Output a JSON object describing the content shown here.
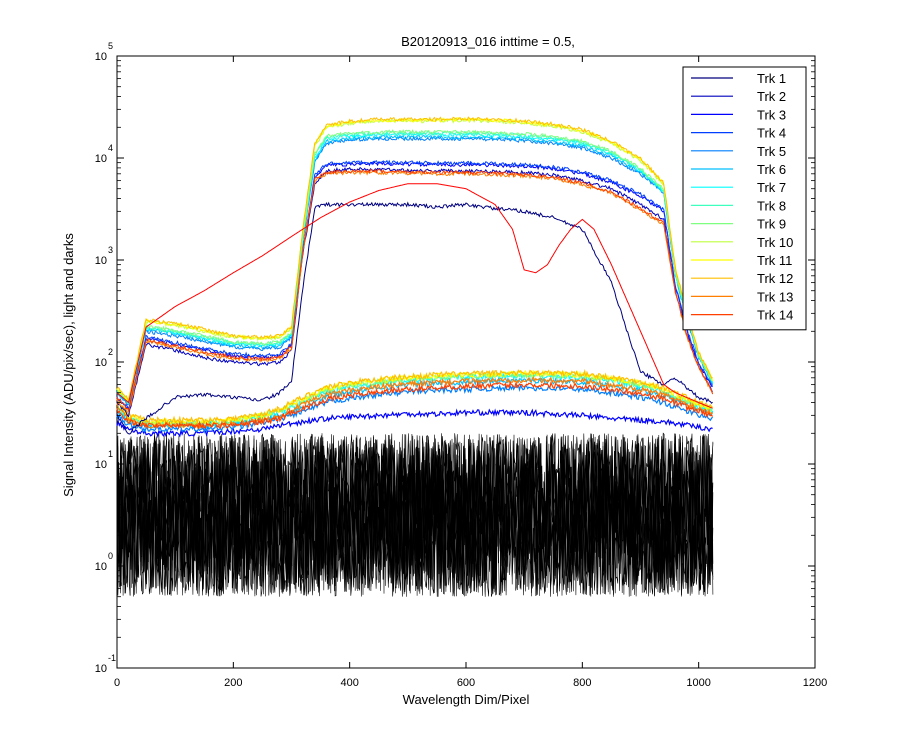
{
  "chart_data": {
    "type": "line",
    "title": "B20120913_016 inttime = 0.5,",
    "xlabel": "Wavelength Dim/Pixel",
    "ylabel": "Signal Intensity (ADU/pix/sec), light and darks",
    "xlim": [
      0,
      1200
    ],
    "ylim": [
      0.1,
      100000
    ],
    "y_scale": "log",
    "grid": false,
    "legend_position": "top-right",
    "x_ticks": [
      0,
      200,
      400,
      600,
      800,
      1000,
      1200
    ],
    "y_ticks": [
      {
        "base": "10",
        "exp": "-1",
        "value": 0.1
      },
      {
        "base": "10",
        "exp": "0",
        "value": 1
      },
      {
        "base": "10",
        "exp": "1",
        "value": 10
      },
      {
        "base": "10",
        "exp": "2",
        "value": 100
      },
      {
        "base": "10",
        "exp": "3",
        "value": 1000
      },
      {
        "base": "10",
        "exp": "4",
        "value": 10000
      },
      {
        "base": "10",
        "exp": "5",
        "value": 100000
      }
    ],
    "x_points": [
      0,
      20,
      50,
      100,
      150,
      200,
      250,
      280,
      300,
      320,
      340,
      360,
      400,
      450,
      500,
      550,
      600,
      650,
      700,
      750,
      800,
      850,
      900,
      940,
      960,
      980,
      1000,
      1025
    ],
    "series": [
      {
        "name": "Trk 1",
        "color": "#00007f",
        "values": [
          30,
          20,
          28,
          45,
          48,
          45,
          42,
          50,
          65,
          550,
          3300,
          3500,
          3500,
          3500,
          3500,
          3300,
          3500,
          3200,
          3000,
          2600,
          2000,
          600,
          80,
          60,
          70,
          55,
          45,
          40
        ]
      },
      {
        "name": "Trk 2",
        "color": "#0000bf",
        "values": [
          40,
          30,
          150,
          130,
          110,
          100,
          95,
          100,
          130,
          1200,
          5500,
          7500,
          7800,
          7700,
          7600,
          7500,
          7500,
          7400,
          7200,
          6800,
          6000,
          5000,
          3500,
          2500,
          500,
          180,
          90,
          50
        ]
      },
      {
        "name": "Trk 3",
        "color": "#0000ff",
        "values": [
          45,
          35,
          170,
          150,
          130,
          115,
          110,
          115,
          145,
          1300,
          6500,
          8500,
          8700,
          8800,
          8700,
          8600,
          8600,
          8500,
          8300,
          7900,
          7000,
          5800,
          4200,
          3000,
          550,
          200,
          95,
          55
        ]
      },
      {
        "name": "Trk 4",
        "color": "#003fff",
        "values": [
          45,
          35,
          175,
          155,
          135,
          120,
          115,
          120,
          150,
          1350,
          6700,
          8800,
          9000,
          9100,
          9000,
          8900,
          8900,
          8800,
          8600,
          8200,
          7300,
          6000,
          4400,
          3100,
          560,
          210,
          98,
          56
        ]
      },
      {
        "name": "Trk 5",
        "color": "#007fff",
        "values": [
          50,
          38,
          200,
          180,
          160,
          140,
          135,
          140,
          175,
          1600,
          9000,
          14000,
          15000,
          15500,
          15500,
          15500,
          15500,
          15200,
          14800,
          14000,
          12500,
          10000,
          7000,
          4500,
          700,
          260,
          110,
          60
        ]
      },
      {
        "name": "Trk 6",
        "color": "#00bfff",
        "values": [
          50,
          38,
          210,
          190,
          165,
          145,
          140,
          145,
          180,
          1650,
          9500,
          14500,
          15500,
          16000,
          16000,
          16000,
          16000,
          15700,
          15300,
          14500,
          13000,
          10500,
          7300,
          4600,
          710,
          265,
          112,
          60
        ]
      },
      {
        "name": "Trk 7",
        "color": "#00ffff",
        "values": [
          52,
          40,
          215,
          195,
          170,
          150,
          145,
          150,
          185,
          1700,
          10000,
          15500,
          16500,
          17000,
          17000,
          17000,
          17000,
          16700,
          16200,
          15300,
          13800,
          11000,
          7500,
          4700,
          720,
          270,
          114,
          62
        ]
      },
      {
        "name": "Trk 8",
        "color": "#3fffbf",
        "values": [
          52,
          40,
          220,
          200,
          175,
          155,
          150,
          155,
          190,
          1750,
          10500,
          16000,
          17000,
          17500,
          17500,
          17500,
          17500,
          17200,
          16700,
          15800,
          14200,
          11300,
          7700,
          4800,
          730,
          275,
          115,
          62
        ]
      },
      {
        "name": "Trk 9",
        "color": "#7fff7f",
        "values": [
          53,
          41,
          225,
          205,
          180,
          158,
          152,
          158,
          195,
          1800,
          11000,
          16500,
          17500,
          18000,
          18000,
          18000,
          18000,
          17700,
          17200,
          16300,
          14600,
          11600,
          7900,
          4900,
          740,
          280,
          117,
          63
        ]
      },
      {
        "name": "Trk 10",
        "color": "#bfff3f",
        "values": [
          55,
          42,
          250,
          230,
          200,
          175,
          170,
          175,
          215,
          2000,
          13000,
          20000,
          22000,
          23000,
          23000,
          23000,
          23500,
          23000,
          22000,
          20500,
          18000,
          14000,
          9500,
          5500,
          800,
          300,
          120,
          65
        ]
      },
      {
        "name": "Trk 11",
        "color": "#ffff00",
        "values": [
          55,
          42,
          255,
          235,
          205,
          178,
          172,
          178,
          218,
          2050,
          13500,
          20500,
          22500,
          23500,
          23500,
          23500,
          24000,
          23500,
          22500,
          21000,
          18500,
          14300,
          9700,
          5600,
          810,
          305,
          122,
          66
        ]
      },
      {
        "name": "Trk 12",
        "color": "#ffbf00",
        "values": [
          56,
          43,
          260,
          240,
          210,
          180,
          175,
          180,
          220,
          2100,
          14000,
          21000,
          23000,
          24000,
          24000,
          24000,
          24500,
          24000,
          23000,
          21500,
          19000,
          14600,
          9900,
          5700,
          820,
          310,
          124,
          67
        ]
      },
      {
        "name": "Trk 13",
        "color": "#ff7f00",
        "values": [
          42,
          32,
          160,
          140,
          120,
          108,
          104,
          108,
          138,
          1250,
          6000,
          7000,
          7200,
          7200,
          7100,
          7000,
          7000,
          6900,
          6700,
          6300,
          5500,
          4500,
          3100,
          2200,
          480,
          175,
          88,
          48
        ]
      },
      {
        "name": "Trk 14",
        "color": "#ff3f00",
        "values": [
          44,
          34,
          165,
          145,
          125,
          112,
          107,
          112,
          142,
          1280,
          6200,
          7200,
          7400,
          7400,
          7300,
          7200,
          7200,
          7100,
          6900,
          6500,
          5700,
          4600,
          3200,
          2300,
          490,
          180,
          90,
          49
        ]
      },
      {
        "name": "",
        "color": "#ff0000",
        "x": [
          0,
          20,
          50,
          100,
          150,
          200,
          250,
          300,
          350,
          400,
          450,
          500,
          550,
          600,
          650,
          680,
          700,
          720,
          740,
          760,
          780,
          800,
          820,
          850,
          900,
          940,
          960,
          1000,
          1025
        ],
        "values": [
          50,
          40,
          220,
          350,
          500,
          750,
          1100,
          1700,
          2600,
          3700,
          4800,
          5600,
          5600,
          5000,
          3500,
          2000,
          800,
          750,
          900,
          1400,
          2000,
          2500,
          2000,
          900,
          200,
          60,
          50,
          40,
          35
        ]
      }
    ],
    "lower_bands": [
      {
        "color": "#0000ff",
        "values": [
          25,
          22,
          20,
          20,
          20,
          21,
          22,
          24,
          25,
          26,
          27,
          28,
          29,
          30,
          31,
          31,
          32,
          32,
          32,
          31,
          30,
          28,
          27,
          26,
          25,
          24,
          23,
          22
        ]
      },
      {
        "color": "#007fff",
        "values": [
          30,
          24,
          22,
          22,
          22,
          23,
          25,
          28,
          30,
          33,
          36,
          40,
          44,
          48,
          51,
          53,
          54,
          55,
          56,
          55,
          54,
          50,
          45,
          40,
          36,
          33,
          30,
          28
        ]
      },
      {
        "color": "#00bfff",
        "values": [
          33,
          26,
          24,
          24,
          24,
          25,
          27,
          30,
          33,
          37,
          41,
          46,
          51,
          56,
          60,
          62,
          64,
          65,
          66,
          65,
          64,
          59,
          53,
          47,
          42,
          38,
          34,
          31
        ]
      },
      {
        "color": "#00ffff",
        "values": [
          36,
          27,
          25,
          25,
          25,
          26,
          29,
          32,
          36,
          40,
          45,
          51,
          57,
          62,
          66,
          69,
          71,
          72,
          73,
          72,
          71,
          65,
          58,
          51,
          45,
          40,
          36,
          33
        ]
      },
      {
        "color": "#7fff7f",
        "values": [
          38,
          28,
          25,
          25,
          25,
          27,
          30,
          33,
          38,
          42,
          47,
          53,
          59,
          64,
          68,
          71,
          73,
          74,
          75,
          74,
          73,
          67,
          60,
          53,
          47,
          42,
          38,
          34
        ]
      },
      {
        "color": "#ffff00",
        "values": [
          40,
          29,
          26,
          26,
          26,
          27,
          30,
          34,
          39,
          43,
          49,
          55,
          61,
          66,
          70,
          73,
          75,
          76,
          77,
          76,
          75,
          69,
          62,
          55,
          48,
          43,
          39,
          35
        ]
      },
      {
        "color": "#ffbf00",
        "values": [
          42,
          30,
          27,
          27,
          27,
          28,
          31,
          35,
          40,
          45,
          51,
          57,
          63,
          68,
          72,
          75,
          77,
          78,
          79,
          78,
          77,
          71,
          64,
          56,
          50,
          45,
          40,
          36
        ]
      },
      {
        "color": "#ff7f00",
        "values": [
          38,
          27,
          24,
          24,
          24,
          25,
          27,
          30,
          34,
          38,
          43,
          48,
          53,
          57,
          61,
          63,
          65,
          66,
          67,
          66,
          65,
          60,
          54,
          48,
          43,
          39,
          35,
          32
        ]
      },
      {
        "color": "#ff3f00",
        "values": [
          35,
          26,
          24,
          24,
          24,
          24,
          26,
          28,
          32,
          35,
          39,
          43,
          47,
          51,
          54,
          56,
          58,
          59,
          60,
          59,
          58,
          54,
          49,
          44,
          40,
          36,
          33,
          30
        ]
      }
    ],
    "darks": {
      "color": "#000000",
      "ymin": 0.5,
      "ymax": 20
    }
  }
}
